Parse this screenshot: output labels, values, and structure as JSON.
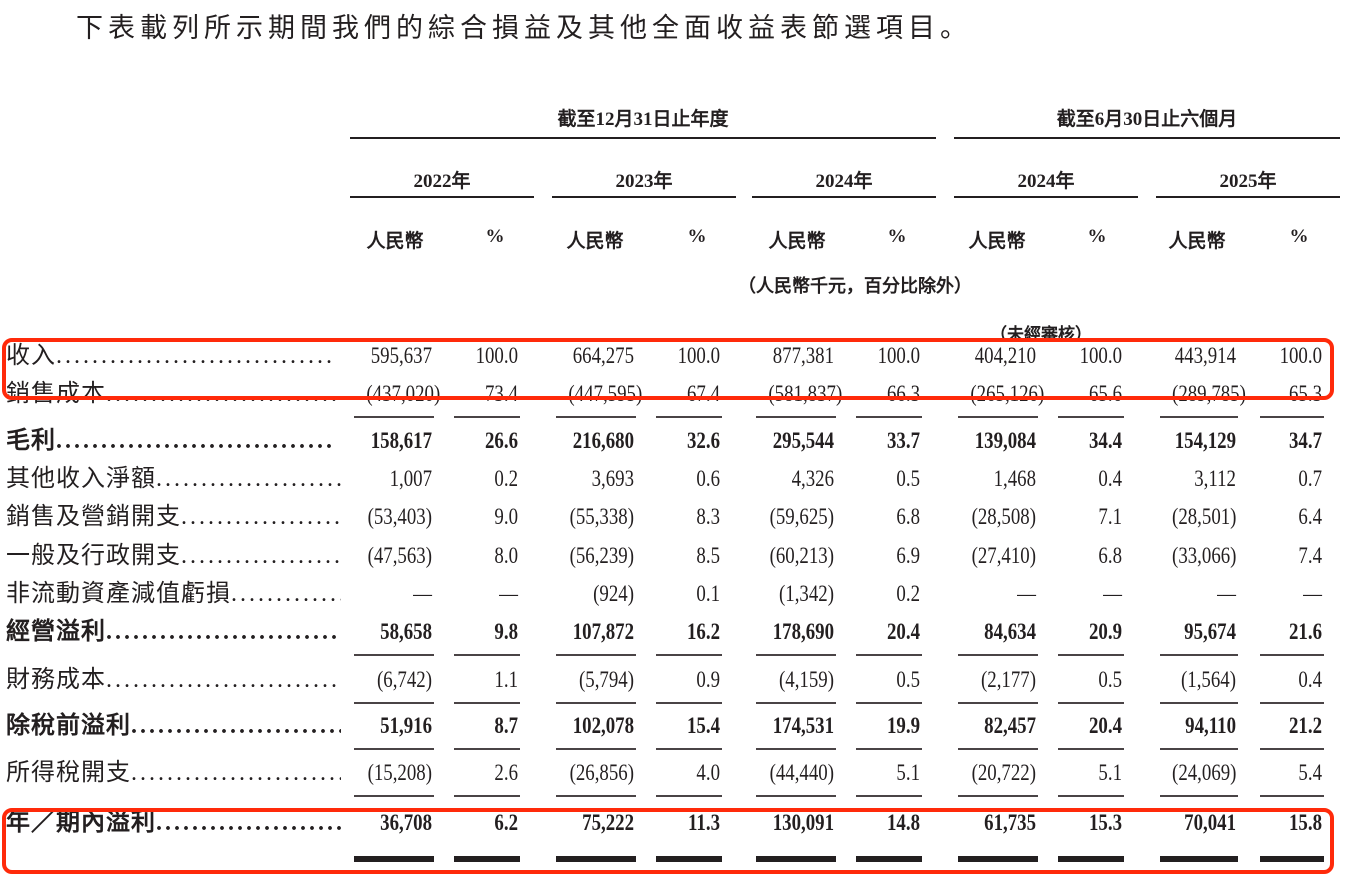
{
  "intro": "下表載列所示期間我們的綜合損益及其他全面收益表節選項目。",
  "header": {
    "group_fy": "截至12月31日止年度",
    "group_h1": "截至6月30日止六個月",
    "years": [
      "2022年",
      "2023年",
      "2024年",
      "2024年",
      "2025年"
    ],
    "currency_label": "人民幣",
    "percent_label": "%",
    "unit_note": "（人民幣千元，百分比除外）",
    "unaudited_note": "（未經審核）"
  },
  "rows": [
    {
      "label": "收入",
      "bold": false,
      "highlight": true,
      "values": [
        "595,637",
        "100.0",
        "664,275",
        "100.0",
        "877,381",
        "100.0",
        "404,210",
        "100.0",
        "443,914",
        "100.0"
      ]
    },
    {
      "label": "銷售成本",
      "bold": false,
      "values": [
        "(437,020)",
        "73.4",
        "(447,595)",
        "67.4",
        "(581,837)",
        "66.3",
        "(265,126)",
        "65.6",
        "(289,785)",
        "65.3"
      ]
    },
    {
      "label": "毛利",
      "bold": true,
      "values": [
        "158,617",
        "26.6",
        "216,680",
        "32.6",
        "295,544",
        "33.7",
        "139,084",
        "34.4",
        "154,129",
        "34.7"
      ]
    },
    {
      "label": "其他收入淨額",
      "bold": false,
      "values": [
        "1,007",
        "0.2",
        "3,693",
        "0.6",
        "4,326",
        "0.5",
        "1,468",
        "0.4",
        "3,112",
        "0.7"
      ]
    },
    {
      "label": "銷售及營銷開支",
      "bold": false,
      "values": [
        "(53,403)",
        "9.0",
        "(55,338)",
        "8.3",
        "(59,625)",
        "6.8",
        "(28,508)",
        "7.1",
        "(28,501)",
        "6.4"
      ]
    },
    {
      "label": "一般及行政開支",
      "bold": false,
      "values": [
        "(47,563)",
        "8.0",
        "(56,239)",
        "8.5",
        "(60,213)",
        "6.9",
        "(27,410)",
        "6.8",
        "(33,066)",
        "7.4"
      ]
    },
    {
      "label": "非流動資產減值虧損",
      "bold": false,
      "values": [
        "—",
        "—",
        "(924)",
        "0.1",
        "(1,342)",
        "0.2",
        "—",
        "—",
        "—",
        "—"
      ]
    },
    {
      "label": "經營溢利",
      "bold": true,
      "values": [
        "58,658",
        "9.8",
        "107,872",
        "16.2",
        "178,690",
        "20.4",
        "84,634",
        "20.9",
        "95,674",
        "21.6"
      ]
    },
    {
      "label": "財務成本",
      "bold": false,
      "values": [
        "(6,742)",
        "1.1",
        "(5,794)",
        "0.9",
        "(4,159)",
        "0.5",
        "(2,177)",
        "0.5",
        "(1,564)",
        "0.4"
      ]
    },
    {
      "label": "除稅前溢利",
      "bold": true,
      "values": [
        "51,916",
        "8.7",
        "102,078",
        "15.4",
        "174,531",
        "19.9",
        "82,457",
        "20.4",
        "94,110",
        "21.2"
      ]
    },
    {
      "label": "所得稅開支",
      "bold": false,
      "values": [
        "(15,208)",
        "2.6",
        "(26,856)",
        "4.0",
        "(44,440)",
        "5.1",
        "(20,722)",
        "5.1",
        "(24,069)",
        "5.4"
      ]
    },
    {
      "label": "年／期內溢利",
      "bold": true,
      "highlight": true,
      "values": [
        "36,708",
        "6.2",
        "75,222",
        "11.3",
        "130,091",
        "14.8",
        "61,735",
        "15.3",
        "70,041",
        "15.8"
      ]
    }
  ],
  "dots": "...............................",
  "highlight_color": "#ff2a0a"
}
